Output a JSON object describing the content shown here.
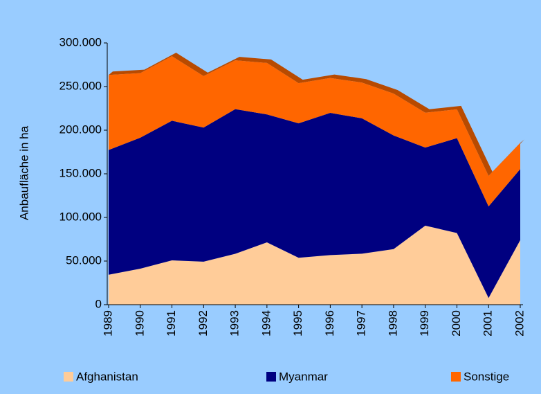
{
  "chart_data": {
    "type": "stacked_area",
    "y_label": "Anbaufläche in ha",
    "categories": [
      "1989",
      "1990",
      "1991",
      "1992",
      "1993",
      "1994",
      "1995",
      "1996",
      "1997",
      "1998",
      "1999",
      "2000",
      "2001",
      "2002"
    ],
    "series": [
      {
        "name": "Afghanistan",
        "color": "#ffcc99",
        "values": [
          34300,
          41300,
          50800,
          49300,
          58300,
          71470,
          53759,
          56824,
          58416,
          63674,
          90583,
          82171,
          7606,
          74045
        ]
      },
      {
        "name": "Myanmar",
        "color": "#000080",
        "values": [
          143000,
          150100,
          160000,
          153700,
          165800,
          146600,
          154070,
          163000,
          155150,
          130300,
          89500,
          108700,
          105000,
          81400
        ]
      },
      {
        "name": "Sonstige",
        "color": "#ff6600",
        "values": [
          86000,
          74000,
          74000,
          59000,
          56000,
          59000,
          46000,
          40000,
          41000,
          48000,
          40000,
          33000,
          35000,
          30000
        ]
      }
    ],
    "ylim": [
      0,
      300000
    ],
    "yticks": [
      0,
      {
        "value": 50000,
        "label": "50.000"
      },
      {
        "value": 100000,
        "label": "100.000"
      },
      {
        "value": 150000,
        "label": "150.000"
      },
      {
        "value": 200000,
        "label": "200.000"
      },
      {
        "value": 250000,
        "label": "250.000"
      },
      {
        "value": 300000,
        "label": "300.000"
      }
    ],
    "legend": "bottom"
  }
}
